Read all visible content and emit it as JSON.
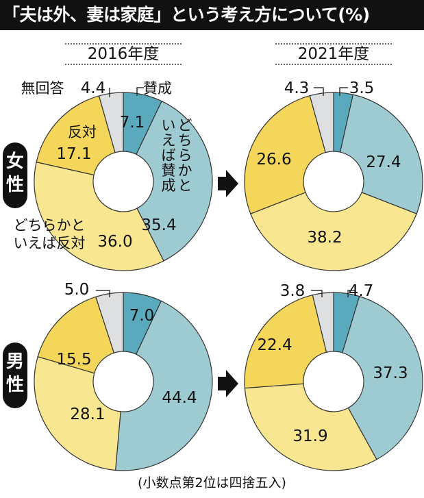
{
  "title": "「夫は外、妻は家庭」という考え方について(%)",
  "footnote": "(小数点第2位は四捨五入)",
  "colors": {
    "favor": "#5aa9bc",
    "somewhat_favor": "#9ecad2",
    "somewhat_oppose": "#f9e690",
    "oppose": "#f4d75a",
    "no_answer": "#dedfe0"
  },
  "legend_labels": {
    "favor": "賛成",
    "somewhat_favor": "どちらかといえば賛成",
    "somewhat_oppose": "どちらかといえば反対",
    "oppose": "反対",
    "no_answer": "無回答"
  },
  "chart_data": [
    {
      "type": "pie",
      "year": "2016年度",
      "gender": "女性",
      "categories": [
        "賛成",
        "どちらかといえば賛成",
        "どちらかといえば反対",
        "反対",
        "無回答"
      ],
      "values": [
        7.1,
        35.4,
        36.0,
        17.1,
        4.4
      ],
      "labels": [
        "7.1",
        "35.4",
        "36.0",
        "17.1",
        "4.4"
      ]
    },
    {
      "type": "pie",
      "year": "2021年度",
      "gender": "女性",
      "categories": [
        "賛成",
        "どちらかといえば賛成",
        "どちらかといえば反対",
        "反対",
        "無回答"
      ],
      "values": [
        3.5,
        27.4,
        38.2,
        26.6,
        4.3
      ],
      "labels": [
        "3.5",
        "27.4",
        "38.2",
        "26.6",
        "4.3"
      ]
    },
    {
      "type": "pie",
      "year": "2016年度",
      "gender": "男性",
      "categories": [
        "賛成",
        "どちらかといえば賛成",
        "どちらかといえば反対",
        "反対",
        "無回答"
      ],
      "values": [
        7.0,
        44.4,
        28.1,
        15.5,
        5.0
      ],
      "labels": [
        "7.0",
        "44.4",
        "28.1",
        "15.5",
        "5.0"
      ]
    },
    {
      "type": "pie",
      "year": "2021年度",
      "gender": "男性",
      "categories": [
        "賛成",
        "どちらかといえば賛成",
        "どちらかといえば反対",
        "反対",
        "無回答"
      ],
      "values": [
        4.7,
        37.3,
        31.9,
        22.4,
        3.8
      ],
      "labels": [
        "4.7",
        "37.3",
        "31.9",
        "22.4",
        "3.8"
      ]
    }
  ]
}
